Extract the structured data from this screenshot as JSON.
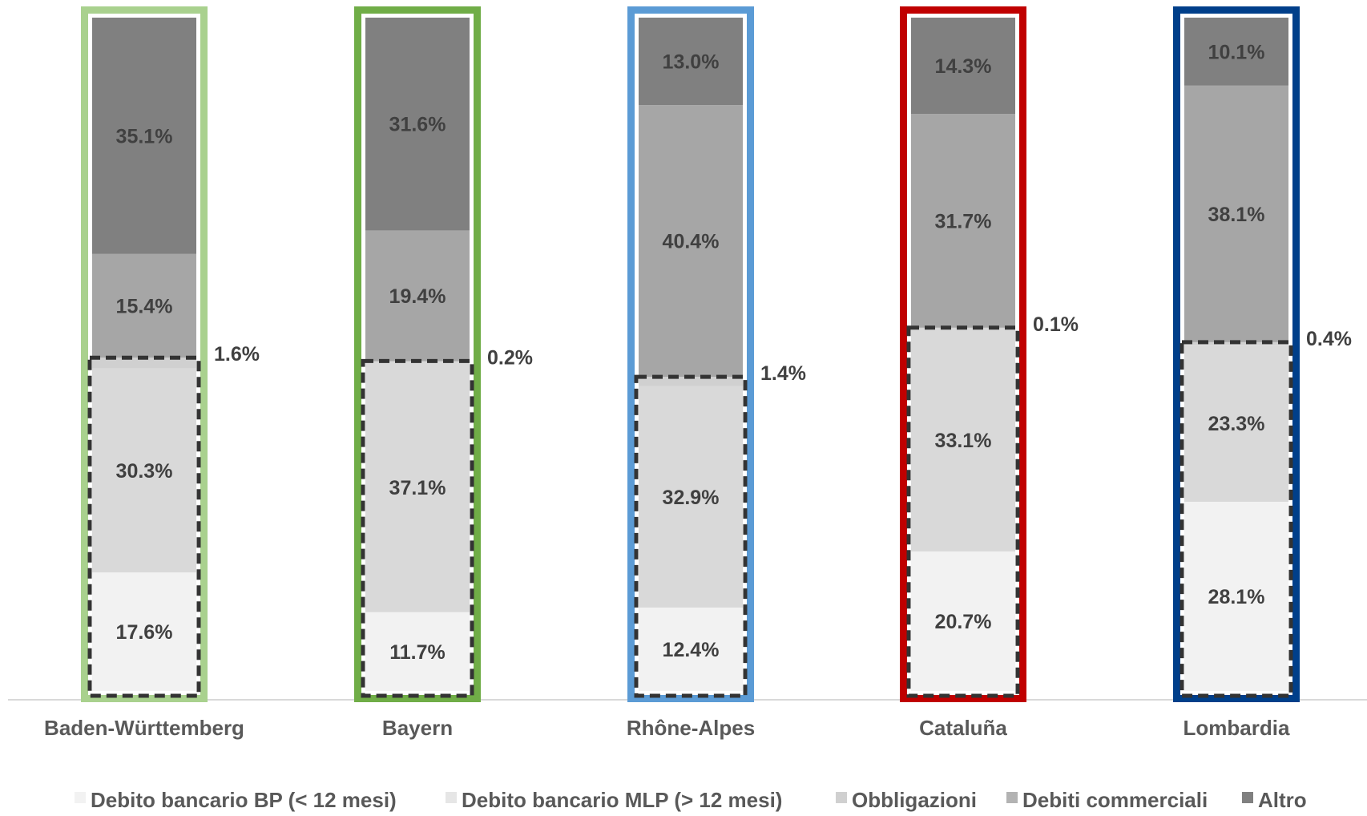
{
  "chart_data": {
    "type": "bar",
    "stacked": true,
    "percent": true,
    "categories": [
      "Baden-Württemberg",
      "Bayern",
      "Rhône-Alpes",
      "Cataluña",
      "Lombardia"
    ],
    "series": [
      {
        "name": "Debito bancario BP (< 12 mesi)",
        "color": "#f2f2f2",
        "values": [
          17.6,
          11.7,
          12.4,
          20.7,
          28.1
        ]
      },
      {
        "name": "Debito bancario MLP (> 12 mesi)",
        "color": "#d9d9d9",
        "values": [
          30.3,
          37.1,
          32.9,
          33.1,
          23.3
        ]
      },
      {
        "name": "Obbligazioni",
        "color": "#d0d0d0",
        "values": [
          1.6,
          0.2,
          1.4,
          0.1,
          0.4
        ]
      },
      {
        "name": "Debiti commerciali",
        "color": "#a6a6a6",
        "values": [
          15.4,
          19.4,
          40.4,
          31.7,
          38.1
        ]
      },
      {
        "name": "Altro",
        "color": "#808080",
        "values": [
          35.1,
          31.6,
          13.0,
          14.3,
          10.1
        ]
      }
    ],
    "data_labels": [
      [
        "17.6%",
        "30.3%",
        "1.6%",
        "15.4%",
        "35.1%"
      ],
      [
        "11.7%",
        "37.1%",
        "0.2%",
        "19.4%",
        "31.6%"
      ],
      [
        "12.4%",
        "32.9%",
        "1.4%",
        "40.4%",
        "13.0%"
      ],
      [
        "20.7%",
        "33.1%",
        "0.1%",
        "31.7%",
        "14.3%"
      ],
      [
        "28.1%",
        "23.3%",
        "0.4%",
        "38.1%",
        "10.1%"
      ]
    ],
    "frame_colors": [
      "#a9d18e",
      "#70ad47",
      "#5b9bd5",
      "#c00000",
      "#003f8a"
    ],
    "dashed_box_color": "#333333",
    "ylim": [
      0,
      100
    ],
    "grid": false,
    "legend_position": "bottom",
    "title": "",
    "xlabel": "",
    "ylabel": ""
  }
}
